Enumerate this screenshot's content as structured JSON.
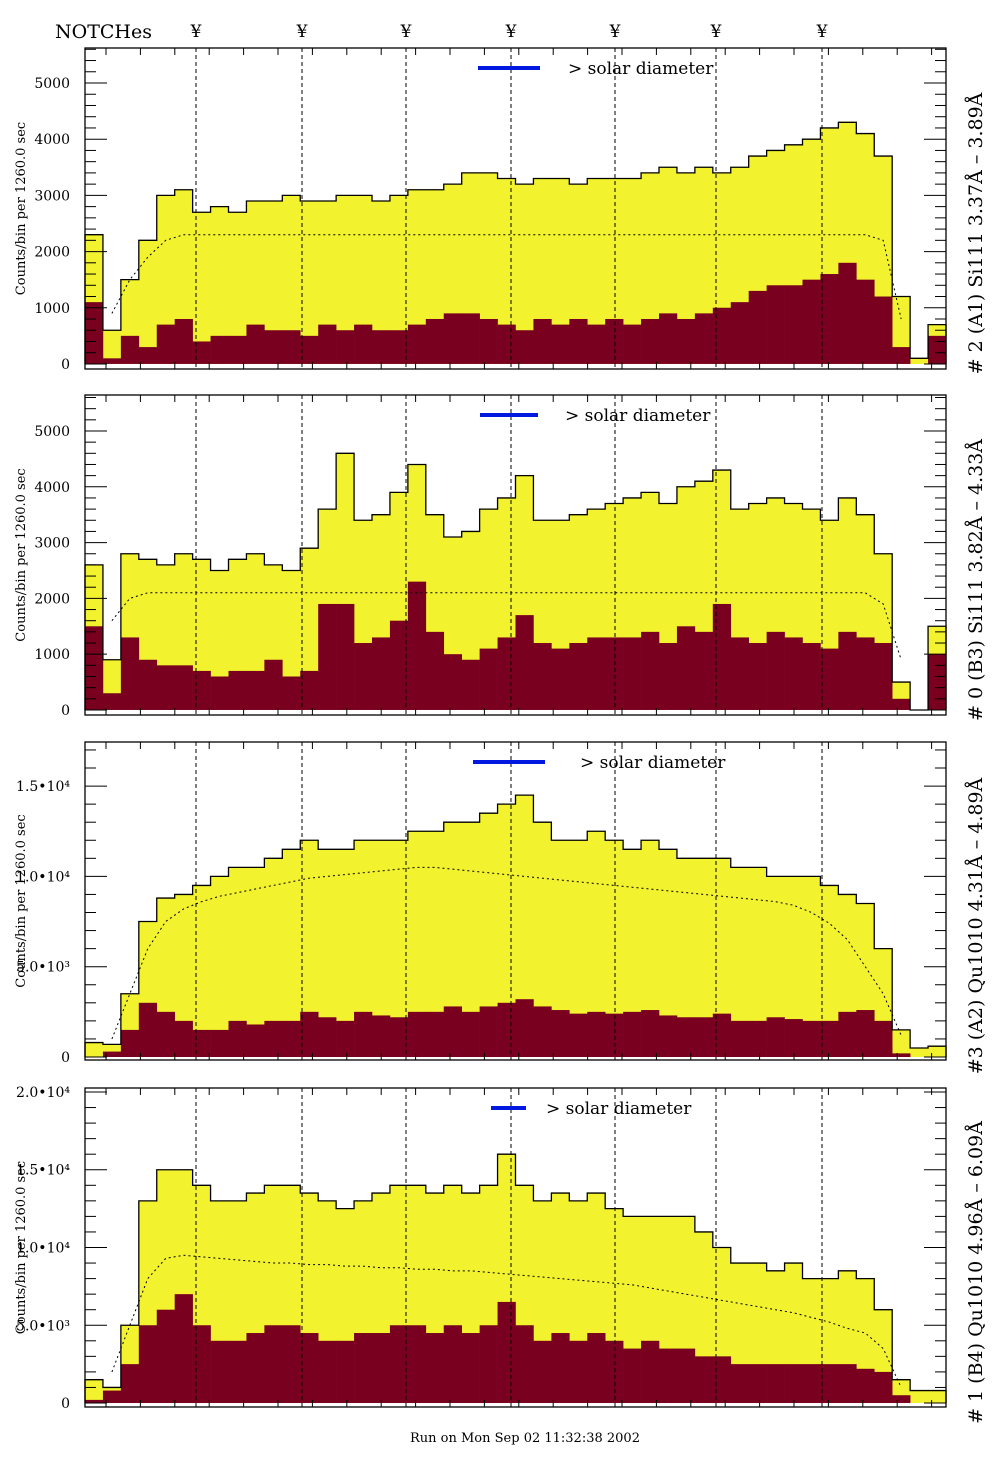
{
  "header": {
    "notches_label": "NOTCHes",
    "notch_symbol": "¥"
  },
  "footer": {
    "run_text": "Run on Mon Sep 02 11:32:38 2002"
  },
  "colors": {
    "total": "#f2f22e",
    "component": "#7a0020",
    "solar_bar": "#0018e0",
    "outline": "#000000"
  },
  "chart_data": [
    {
      "type": "bar",
      "title": "# 2 (A1) Si111  3.37Å – 3.89Å",
      "ylabel": "Counts/bin per   1260.0 sec",
      "solar_label": "> solar diameter",
      "ylim": [
        -90,
        5623
      ],
      "yticks": [
        0,
        1000,
        2000,
        3000,
        4000,
        5000
      ],
      "ytick_labels": [
        "0",
        "1000",
        "2000",
        "3000",
        "4000",
        "5000"
      ],
      "total": [
        2300,
        600,
        1500,
        2200,
        3000,
        3100,
        2700,
        2800,
        2700,
        2900,
        2900,
        3000,
        2900,
        2900,
        3000,
        3000,
        2900,
        3000,
        3100,
        3100,
        3200,
        3400,
        3400,
        3300,
        3200,
        3300,
        3300,
        3200,
        3300,
        3300,
        3300,
        3400,
        3500,
        3400,
        3500,
        3400,
        3500,
        3700,
        3800,
        3900,
        4000,
        4200,
        4300,
        4100,
        3700,
        1200,
        100,
        700
      ],
      "component": [
        1100,
        100,
        500,
        300,
        700,
        800,
        400,
        500,
        500,
        700,
        600,
        600,
        500,
        700,
        600,
        700,
        600,
        600,
        700,
        800,
        900,
        900,
        800,
        700,
        600,
        800,
        700,
        800,
        700,
        800,
        700,
        800,
        900,
        800,
        900,
        1000,
        1100,
        1300,
        1400,
        1400,
        1500,
        1600,
        1800,
        1500,
        1200,
        300,
        0,
        500
      ],
      "model": [
        null,
        900,
        1500,
        1900,
        2200,
        2300,
        2300,
        2300,
        2300,
        2300,
        2300,
        2300,
        2300,
        2300,
        2300,
        2300,
        2300,
        2300,
        2300,
        2300,
        2300,
        2300,
        2300,
        2300,
        2300,
        2300,
        2300,
        2300,
        2300,
        2300,
        2300,
        2300,
        2300,
        2300,
        2300,
        2300,
        2300,
        2300,
        2300,
        2300,
        2300,
        2300,
        2300,
        2300,
        2200,
        800,
        null,
        null
      ]
    },
    {
      "type": "bar",
      "title": "# 0 (B3) Si111  3.82Å – 4.33Å",
      "ylabel": "Counts/bin per   1260.0 sec",
      "solar_label": "> solar diameter",
      "ylim": [
        -90,
        5645
      ],
      "yticks": [
        0,
        1000,
        2000,
        3000,
        4000,
        5000
      ],
      "ytick_labels": [
        "0",
        "1000",
        "2000",
        "3000",
        "4000",
        "5000"
      ],
      "total": [
        2600,
        900,
        2800,
        2700,
        2600,
        2800,
        2700,
        2500,
        2700,
        2800,
        2600,
        2500,
        2900,
        3600,
        4600,
        3400,
        3500,
        3900,
        4400,
        3500,
        3100,
        3200,
        3600,
        3800,
        4200,
        3400,
        3400,
        3500,
        3600,
        3700,
        3800,
        3900,
        3700,
        4000,
        4100,
        4300,
        3600,
        3700,
        3800,
        3700,
        3600,
        3400,
        3800,
        3500,
        2800,
        500,
        0,
        1500
      ],
      "component": [
        1500,
        300,
        1300,
        900,
        800,
        800,
        700,
        600,
        700,
        700,
        900,
        600,
        700,
        1900,
        1900,
        1200,
        1300,
        1600,
        2300,
        1400,
        1000,
        900,
        1100,
        1300,
        1700,
        1200,
        1100,
        1200,
        1300,
        1300,
        1300,
        1400,
        1200,
        1500,
        1400,
        1900,
        1300,
        1200,
        1400,
        1300,
        1200,
        1100,
        1400,
        1300,
        1200,
        200,
        0,
        1000
      ],
      "model": [
        null,
        1600,
        2000,
        2100,
        2100,
        2100,
        2100,
        2100,
        2100,
        2100,
        2100,
        2100,
        2100,
        2100,
        2100,
        2100,
        2100,
        2100,
        2100,
        2100,
        2100,
        2100,
        2100,
        2100,
        2100,
        2100,
        2100,
        2100,
        2100,
        2100,
        2100,
        2100,
        2100,
        2100,
        2100,
        2100,
        2100,
        2100,
        2100,
        2100,
        2100,
        2100,
        2100,
        2100,
        1900,
        900,
        null,
        null
      ]
    },
    {
      "type": "bar",
      "title": "#3 (A2) Qu1010  4.31Å – 4.89Å",
      "ylabel": "Counts/bin per   1260.0 sec",
      "solar_label": "> solar diameter",
      "ylim": [
        -166,
        17440
      ],
      "yticks": [
        0,
        5000,
        10000,
        15000
      ],
      "ytick_labels": [
        "0",
        "5.0•10³",
        "1.0•10⁴",
        "1.5•10⁴"
      ],
      "total": [
        800,
        700,
        3500,
        7500,
        8800,
        9000,
        9500,
        10000,
        10500,
        10500,
        11000,
        11500,
        12000,
        11500,
        11500,
        12000,
        12000,
        12000,
        12500,
        12500,
        13000,
        13000,
        13500,
        14000,
        14500,
        13000,
        12000,
        12000,
        12500,
        12000,
        11500,
        12000,
        11500,
        11000,
        11000,
        11000,
        10500,
        10500,
        10000,
        10000,
        10000,
        9500,
        9000,
        8500,
        6000,
        1500,
        500,
        600
      ],
      "component": [
        0,
        300,
        1500,
        3000,
        2500,
        2000,
        1500,
        1500,
        2000,
        1800,
        2000,
        2000,
        2500,
        2200,
        2000,
        2500,
        2300,
        2200,
        2500,
        2500,
        2800,
        2500,
        2800,
        3000,
        3200,
        2800,
        2600,
        2400,
        2500,
        2400,
        2500,
        2600,
        2300,
        2200,
        2200,
        2400,
        2000,
        2000,
        2200,
        2100,
        2000,
        2000,
        2500,
        2600,
        2000,
        200,
        0,
        0
      ],
      "model": [
        null,
        1000,
        3500,
        6000,
        7500,
        8200,
        8600,
        8900,
        9100,
        9300,
        9500,
        9700,
        9900,
        10000,
        10100,
        10200,
        10300,
        10400,
        10500,
        10500,
        10400,
        10300,
        10200,
        10100,
        10000,
        9900,
        9800,
        9700,
        9600,
        9500,
        9400,
        9300,
        9200,
        9100,
        9000,
        8900,
        8800,
        8700,
        8600,
        8400,
        8000,
        7400,
        6500,
        5000,
        3500,
        1200,
        null,
        null
      ]
    },
    {
      "type": "bar",
      "title": "# 1 (B4) Qu1010 4.96Å – 6.09Å",
      "ylabel": "Counts/bin per   1260.0 sec",
      "solar_label": "> solar diameter",
      "ylim": [
        -257,
        20257
      ],
      "yticks": [
        0,
        5000,
        10000,
        15000,
        20000
      ],
      "ytick_labels": [
        "0",
        "5.0•10³",
        "1.0•10⁴",
        "1.5•10⁴",
        "2.0•10⁴"
      ],
      "total": [
        1500,
        1000,
        5000,
        13000,
        15000,
        15000,
        14000,
        13000,
        13000,
        13500,
        14000,
        14000,
        13500,
        13000,
        12500,
        13000,
        13500,
        14000,
        14000,
        13500,
        14000,
        13500,
        14000,
        16000,
        14000,
        13000,
        13500,
        13000,
        13500,
        12500,
        12000,
        12000,
        12000,
        12000,
        11000,
        10000,
        9000,
        9000,
        8500,
        9000,
        8000,
        8000,
        8500,
        8000,
        6000,
        1500,
        800,
        800
      ],
      "component": [
        200,
        800,
        2500,
        5000,
        6000,
        7000,
        5000,
        4000,
        4000,
        4500,
        5000,
        5000,
        4500,
        4000,
        4000,
        4500,
        4500,
        5000,
        5000,
        4500,
        5000,
        4500,
        5000,
        6500,
        5000,
        4000,
        4500,
        4000,
        4500,
        4000,
        3500,
        4000,
        3500,
        3500,
        3000,
        3000,
        2500,
        2500,
        2500,
        2500,
        2500,
        2500,
        2500,
        2200,
        2000,
        500,
        0,
        0
      ],
      "model": [
        null,
        2000,
        5000,
        8000,
        9300,
        9500,
        9400,
        9300,
        9200,
        9100,
        9000,
        9000,
        8900,
        8900,
        8800,
        8800,
        8700,
        8700,
        8600,
        8600,
        8500,
        8500,
        8400,
        8300,
        8200,
        8100,
        8000,
        7900,
        7800,
        7700,
        7600,
        7400,
        7200,
        7000,
        6800,
        6600,
        6400,
        6200,
        6000,
        5800,
        5500,
        5200,
        4800,
        4500,
        3500,
        1000,
        null,
        null
      ]
    }
  ]
}
